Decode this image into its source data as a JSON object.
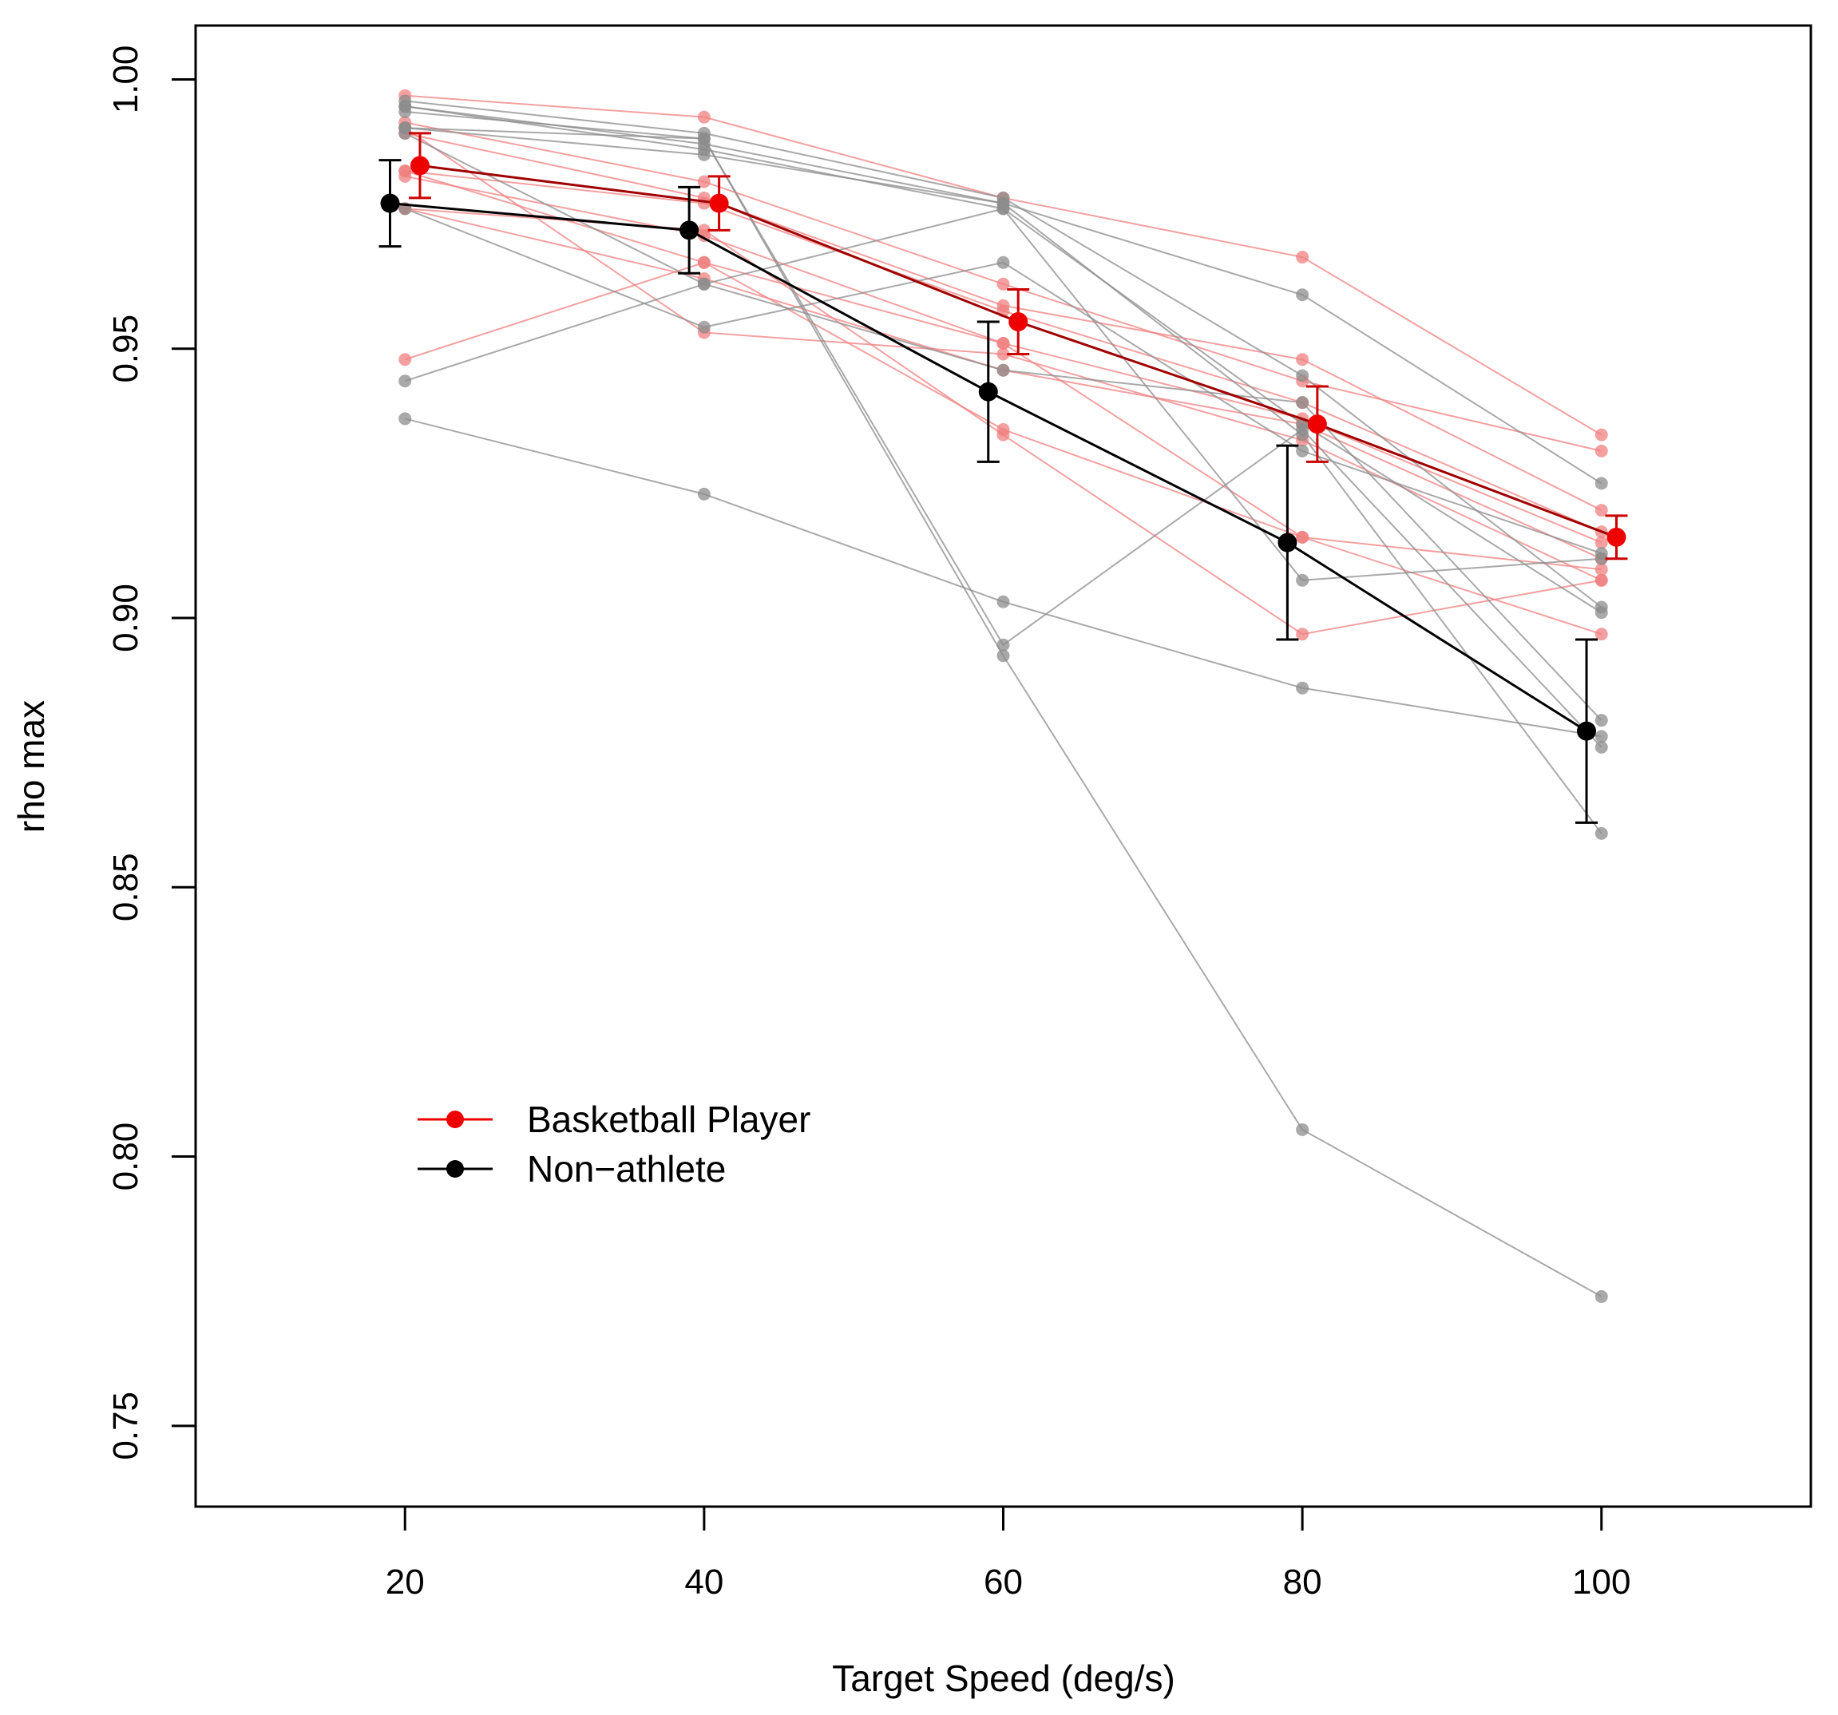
{
  "chart_data": {
    "type": "line",
    "title": "",
    "xlabel": "Target Speed (deg/s)",
    "ylabel": "rho max",
    "xlim": [
      6,
      114
    ],
    "ylim": [
      0.735,
      1.01
    ],
    "x": [
      20,
      40,
      60,
      80,
      100
    ],
    "x_tick_labels": [
      "20",
      "40",
      "60",
      "80",
      "100"
    ],
    "y_ticks": [
      0.75,
      0.8,
      0.85,
      0.9,
      0.95,
      1.0
    ],
    "y_tick_labels": [
      "0.75",
      "0.80",
      "0.85",
      "0.90",
      "0.95",
      "1.00"
    ],
    "grid": false,
    "legend": {
      "position": "lower-left",
      "entries": [
        {
          "label": "Basketball Player",
          "color": "#ee0000"
        },
        {
          "label": "Non−athlete",
          "color": "#000000"
        }
      ]
    },
    "colors": {
      "basketball": "#ee0000",
      "basketball_mean_line": "#a00000",
      "non_athlete": "#000000",
      "individual_basketball": "#f08080",
      "individual_non_athlete": "#8c8c8c"
    },
    "series": [
      {
        "name": "Basketball Player",
        "x": [
          21,
          41,
          61,
          81,
          101
        ],
        "values": [
          0.984,
          0.977,
          0.955,
          0.936,
          0.915
        ],
        "error": [
          0.006,
          0.005,
          0.006,
          0.007,
          0.004
        ]
      },
      {
        "name": "Non−athlete",
        "x": [
          19,
          39,
          59,
          79,
          99
        ],
        "values": [
          0.977,
          0.972,
          0.942,
          0.914,
          0.879
        ],
        "error": [
          0.008,
          0.008,
          0.013,
          0.018,
          0.017
        ]
      }
    ],
    "individual_series": [
      {
        "group": "Basketball Player",
        "values": [
          0.997,
          0.993,
          0.978,
          0.967,
          0.934
        ]
      },
      {
        "group": "Basketball Player",
        "values": [
          0.992,
          0.981,
          0.962,
          0.944,
          0.931
        ]
      },
      {
        "group": "Basketball Player",
        "values": [
          0.99,
          0.978,
          0.958,
          0.948,
          0.92
        ]
      },
      {
        "group": "Basketball Player",
        "values": [
          0.983,
          0.977,
          0.957,
          0.94,
          0.916
        ]
      },
      {
        "group": "Basketball Player",
        "values": [
          0.983,
          0.966,
          0.951,
          0.937,
          0.914
        ]
      },
      {
        "group": "Basketball Player",
        "values": [
          0.976,
          0.963,
          0.946,
          0.936,
          0.911
        ]
      },
      {
        "group": "Basketball Player",
        "values": [
          0.991,
          0.953,
          0.949,
          0.933,
          0.907
        ]
      },
      {
        "group": "Basketball Player",
        "values": [
          0.948,
          0.966,
          0.935,
          0.915,
          0.909
        ]
      },
      {
        "group": "Basketball Player",
        "values": [
          0.976,
          0.972,
          0.934,
          0.897,
          0.907
        ]
      },
      {
        "group": "Basketball Player",
        "values": [
          0.982,
          0.971,
          0.951,
          0.915,
          0.897
        ]
      },
      {
        "group": "Non−athlete",
        "values": [
          0.996,
          0.99,
          0.978,
          0.945,
          0.902
        ]
      },
      {
        "group": "Non−athlete",
        "values": [
          0.995,
          0.988,
          0.977,
          0.96,
          0.925
        ]
      },
      {
        "group": "Non−athlete",
        "values": [
          0.995,
          0.987,
          0.976,
          0.936,
          0.901
        ]
      },
      {
        "group": "Non−athlete",
        "values": [
          0.991,
          0.986,
          0.977,
          0.934,
          0.86
        ]
      },
      {
        "group": "Non−athlete",
        "values": [
          0.99,
          0.962,
          0.946,
          0.94,
          0.881
        ]
      },
      {
        "group": "Non−athlete",
        "values": [
          0.994,
          0.989,
          0.895,
          0.935,
          0.876
        ]
      },
      {
        "group": "Non−athlete",
        "values": [
          0.976,
          0.954,
          0.966,
          0.931,
          0.912
        ]
      },
      {
        "group": "Non−athlete",
        "values": [
          0.944,
          0.962,
          0.976,
          0.907,
          0.911
        ]
      },
      {
        "group": "Non−athlete",
        "values": [
          0.991,
          0.989,
          0.893,
          0.805,
          0.774
        ]
      },
      {
        "group": "Non−athlete",
        "values": [
          0.937,
          0.923,
          0.903,
          0.887,
          0.878
        ]
      }
    ]
  }
}
